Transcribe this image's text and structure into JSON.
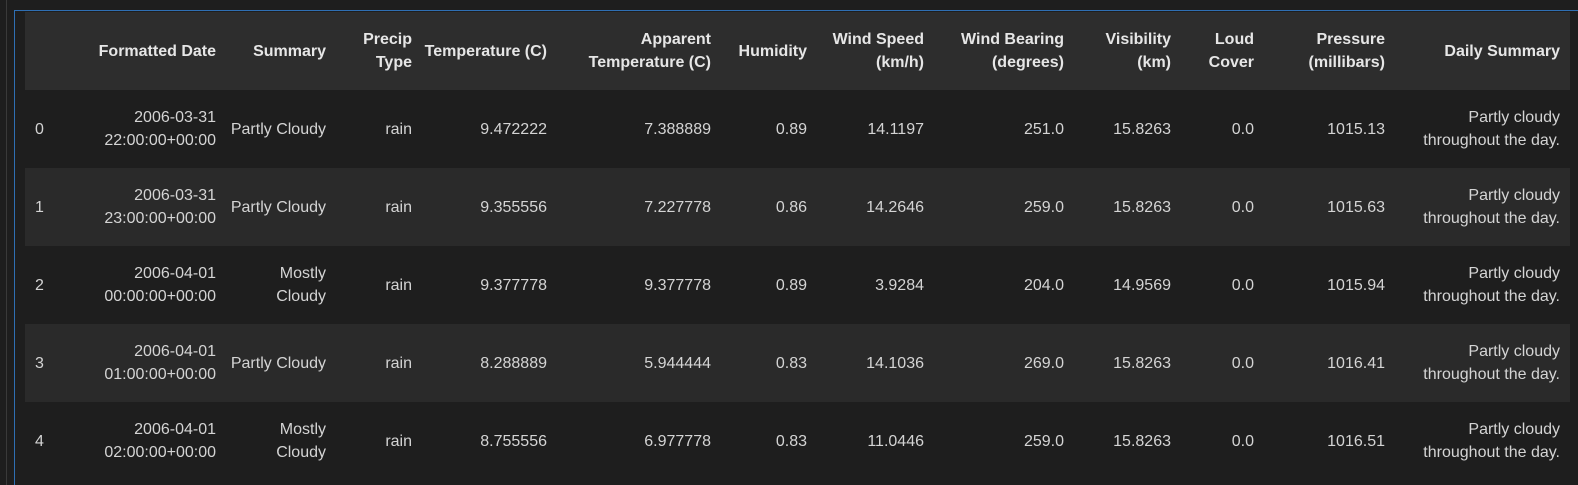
{
  "dataframe": {
    "columns": [
      "",
      "Formatted Date",
      "Summary",
      "Precip Type",
      "Temperature (C)",
      "Apparent Temperature (C)",
      "Humidity",
      "Wind Speed (km/h)",
      "Wind Bearing (degrees)",
      "Visibility (km)",
      "Loud Cover",
      "Pressure (millibars)",
      "Daily Summary"
    ],
    "rows": [
      [
        "0",
        "2006-03-31 22:00:00+00:00",
        "Partly Cloudy",
        "rain",
        "9.472222",
        "7.388889",
        "0.89",
        "14.1197",
        "251.0",
        "15.8263",
        "0.0",
        "1015.13",
        "Partly cloudy throughout the day."
      ],
      [
        "1",
        "2006-03-31 23:00:00+00:00",
        "Partly Cloudy",
        "rain",
        "9.355556",
        "7.227778",
        "0.86",
        "14.2646",
        "259.0",
        "15.8263",
        "0.0",
        "1015.63",
        "Partly cloudy throughout the day."
      ],
      [
        "2",
        "2006-04-01 00:00:00+00:00",
        "Mostly Cloudy",
        "rain",
        "9.377778",
        "9.377778",
        "0.89",
        "3.9284",
        "204.0",
        "14.9569",
        "0.0",
        "1015.94",
        "Partly cloudy throughout the day."
      ],
      [
        "3",
        "2006-04-01 01:00:00+00:00",
        "Partly Cloudy",
        "rain",
        "8.288889",
        "5.944444",
        "0.83",
        "14.1036",
        "269.0",
        "15.8263",
        "0.0",
        "1016.41",
        "Partly cloudy throughout the day."
      ],
      [
        "4",
        "2006-04-01 02:00:00+00:00",
        "Mostly Cloudy",
        "rain",
        "8.755556",
        "6.977778",
        "0.83",
        "11.0446",
        "259.0",
        "15.8263",
        "0.0",
        "1016.51",
        "Partly cloudy throughout the day."
      ]
    ]
  },
  "colors": {
    "background": "#1e1e1e",
    "header_background": "#2d2d2d",
    "row_alt_background": "#2a2a2a",
    "cell_focus_border": "#2f6fb3",
    "text": "#d4d4d4"
  }
}
